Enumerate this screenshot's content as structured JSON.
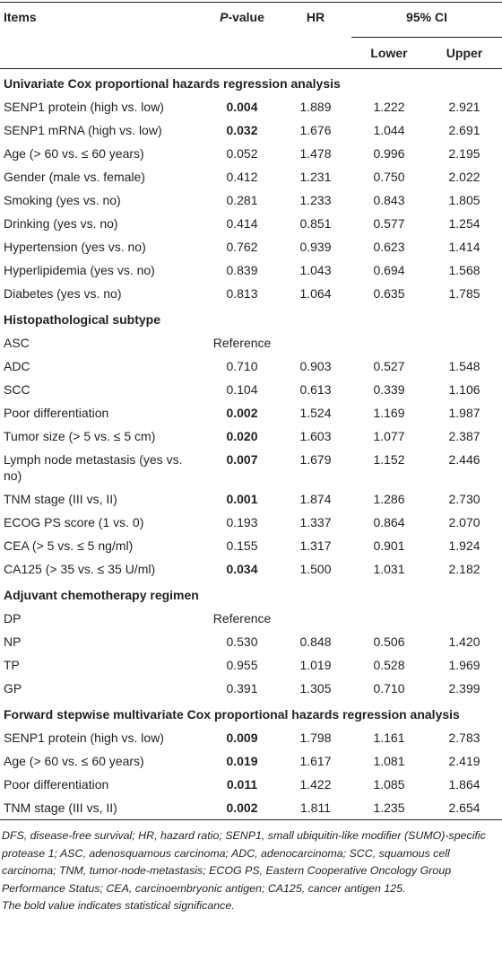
{
  "header": {
    "items": "Items",
    "p_value": "P-value",
    "hr": "HR",
    "ci": "95% CI",
    "lower": "Lower",
    "upper": "Upper"
  },
  "sections": [
    {
      "title": "Univariate Cox proportional hazards regression analysis",
      "rows": [
        {
          "cells": [
            "SENP1 protein (high vs. low)",
            "0.004",
            "1.889",
            "1.222",
            "2.921"
          ],
          "bold": true
        },
        {
          "cells": [
            "SENP1 mRNA (high vs. low)",
            "0.032",
            "1.676",
            "1.044",
            "2.691"
          ],
          "bold": true
        },
        {
          "cells": [
            "Age (> 60 vs. ≤ 60 years)",
            "0.052",
            "1.478",
            "0.996",
            "2.195"
          ],
          "bold": false
        },
        {
          "cells": [
            "Gender (male vs. female)",
            "0.412",
            "1.231",
            "0.750",
            "2.022"
          ],
          "bold": false
        },
        {
          "cells": [
            "Smoking (yes vs. no)",
            "0.281",
            "1.233",
            "0.843",
            "1.805"
          ],
          "bold": false
        },
        {
          "cells": [
            "Drinking (yes vs. no)",
            "0.414",
            "0.851",
            "0.577",
            "1.254"
          ],
          "bold": false
        },
        {
          "cells": [
            "Hypertension (yes vs. no)",
            "0.762",
            "0.939",
            "0.623",
            "1.414"
          ],
          "bold": false
        },
        {
          "cells": [
            "Hyperlipidemia (yes vs. no)",
            "0.839",
            "1.043",
            "0.694",
            "1.568"
          ],
          "bold": false
        },
        {
          "cells": [
            "Diabetes (yes vs. no)",
            "0.813",
            "1.064",
            "0.635",
            "1.785"
          ],
          "bold": false
        }
      ]
    },
    {
      "title": "Histopathological subtype",
      "rows": [
        {
          "cells": [
            "ASC",
            "Reference"
          ],
          "bold": false
        },
        {
          "cells": [
            "ADC",
            "0.710",
            "0.903",
            "0.527",
            "1.548"
          ],
          "bold": false
        },
        {
          "cells": [
            "SCC",
            "0.104",
            "0.613",
            "0.339",
            "1.106"
          ],
          "bold": false
        },
        {
          "cells": [
            "Poor differentiation",
            "0.002",
            "1.524",
            "1.169",
            "1.987"
          ],
          "bold": true
        },
        {
          "cells": [
            "Tumor size (> 5 vs. ≤ 5 cm)",
            "0.020",
            "1.603",
            "1.077",
            "2.387"
          ],
          "bold": true
        },
        {
          "cells": [
            "Lymph node metastasis (yes vs. no)",
            "0.007",
            "1.679",
            "1.152",
            "2.446"
          ],
          "bold": true
        },
        {
          "cells": [
            "TNM stage (III vs, II)",
            "0.001",
            "1.874",
            "1.286",
            "2.730"
          ],
          "bold": true
        },
        {
          "cells": [
            "ECOG PS score (1 vs. 0)",
            "0.193",
            "1.337",
            "0.864",
            "2.070"
          ],
          "bold": false
        },
        {
          "cells": [
            "CEA (> 5 vs. ≤ 5 ng/ml)",
            "0.155",
            "1.317",
            "0.901",
            "1.924"
          ],
          "bold": false
        },
        {
          "cells": [
            "CA125 (> 35 vs. ≤ 35 U/ml)",
            "0.034",
            "1.500",
            "1.031",
            "2.182"
          ],
          "bold": true
        }
      ]
    },
    {
      "title": "Adjuvant chemotherapy regimen",
      "rows": [
        {
          "cells": [
            "DP",
            "Reference"
          ],
          "bold": false
        },
        {
          "cells": [
            "NP",
            "0.530",
            "0.848",
            "0.506",
            "1.420"
          ],
          "bold": false
        },
        {
          "cells": [
            "TP",
            "0.955",
            "1.019",
            "0.528",
            "1.969"
          ],
          "bold": false
        },
        {
          "cells": [
            "GP",
            "0.391",
            "1.305",
            "0.710",
            "2.399"
          ],
          "bold": false
        }
      ]
    },
    {
      "title": "Forward stepwise multivariate Cox proportional hazards regression analysis",
      "rows": [
        {
          "cells": [
            "SENP1 protein (high vs. low)",
            "0.009",
            "1.798",
            "1.161",
            "2.783"
          ],
          "bold": true
        },
        {
          "cells": [
            "Age (> 60 vs. ≤ 60 years)",
            "0.019",
            "1.617",
            "1.081",
            "2.419"
          ],
          "bold": true
        },
        {
          "cells": [
            "Poor differentiation",
            "0.011",
            "1.422",
            "1.085",
            "1.864"
          ],
          "bold": true
        },
        {
          "cells": [
            "TNM stage (III vs, II)",
            "0.002",
            "1.811",
            "1.235",
            "2.654"
          ],
          "bold": true
        }
      ]
    }
  ],
  "footnotes": [
    "DFS, disease-free survival; HR, hazard ratio; SENP1, small ubiquitin-like modifier (SUMO)-specific protease 1; ASC, adenosquamous carcinoma; ADC, adenocarcinoma; SCC, squamous cell carcinoma; TNM, tumor-node-metastasis; ECOG PS, Eastern Cooperative Oncology Group Performance Status; CEA, carcinoembryonic antigen; CA125, cancer antigen 125.",
    "The bold value indicates statistical significance."
  ]
}
